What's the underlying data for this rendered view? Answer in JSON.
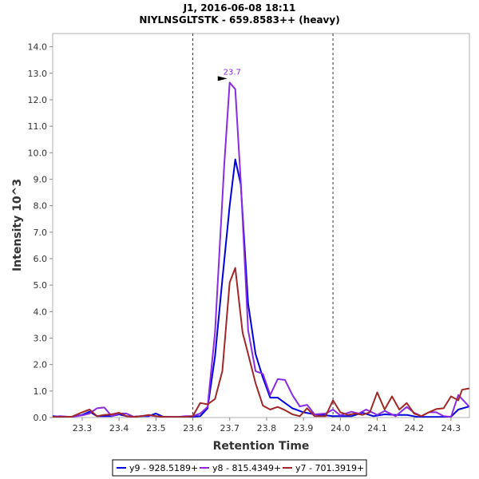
{
  "chart_data": {
    "type": "line",
    "title": "J1, 2016-06-08 18:11",
    "subtitle": "NIYLNSGLTSTK - 659.8583++ (heavy)",
    "xlabel": "Retention Time",
    "ylabel": "Intensity 10^3",
    "xlim": [
      23.22,
      24.35
    ],
    "ylim": [
      0,
      14.5
    ],
    "x_ticks": [
      "23.3",
      "23.4",
      "23.5",
      "23.6",
      "23.7",
      "23.8",
      "23.9",
      "24.0",
      "24.1",
      "24.2",
      "24.3"
    ],
    "y_ticks": [
      "0.0",
      "1.0",
      "2.0",
      "3.0",
      "4.0",
      "5.0",
      "6.0",
      "7.0",
      "8.0",
      "9.0",
      "10.0",
      "11.0",
      "12.0",
      "13.0",
      "14.0"
    ],
    "boundaries": [
      23.6,
      23.98
    ],
    "peak_annotation": {
      "label": "23.7",
      "x": 23.7,
      "y": 12.65
    },
    "series": [
      {
        "name": "y9 - 928.5189+",
        "color": "#0000dd",
        "points": [
          [
            23.22,
            0.05
          ],
          [
            23.24,
            0.03
          ],
          [
            23.27,
            0.02
          ],
          [
            23.3,
            0.1
          ],
          [
            23.32,
            0.22
          ],
          [
            23.34,
            0.05
          ],
          [
            23.36,
            0.05
          ],
          [
            23.38,
            0.05
          ],
          [
            23.4,
            0.12
          ],
          [
            23.42,
            0.05
          ],
          [
            23.44,
            0.03
          ],
          [
            23.46,
            0.05
          ],
          [
            23.48,
            0.05
          ],
          [
            23.5,
            0.15
          ],
          [
            23.52,
            0.03
          ],
          [
            23.54,
            0.02
          ],
          [
            23.56,
            0.02
          ],
          [
            23.58,
            0.02
          ],
          [
            23.6,
            0.03
          ],
          [
            23.62,
            0.05
          ],
          [
            23.64,
            0.35
          ],
          [
            23.66,
            2.3
          ],
          [
            23.68,
            5.2
          ],
          [
            23.7,
            8.0
          ],
          [
            23.715,
            9.75
          ],
          [
            23.73,
            8.8
          ],
          [
            23.75,
            4.3
          ],
          [
            23.77,
            2.4
          ],
          [
            23.79,
            1.5
          ],
          [
            23.81,
            0.75
          ],
          [
            23.83,
            0.75
          ],
          [
            23.85,
            0.55
          ],
          [
            23.87,
            0.35
          ],
          [
            23.9,
            0.2
          ],
          [
            23.93,
            0.12
          ],
          [
            23.96,
            0.08
          ],
          [
            23.98,
            0.05
          ],
          [
            24.0,
            0.05
          ],
          [
            24.03,
            0.05
          ],
          [
            24.06,
            0.18
          ],
          [
            24.09,
            0.05
          ],
          [
            24.12,
            0.12
          ],
          [
            24.15,
            0.1
          ],
          [
            24.18,
            0.1
          ],
          [
            24.21,
            0.02
          ],
          [
            24.24,
            0.02
          ],
          [
            24.27,
            0.02
          ],
          [
            24.3,
            0.03
          ],
          [
            24.32,
            0.3
          ],
          [
            24.35,
            0.42
          ]
        ]
      },
      {
        "name": "y8 - 815.4349+",
        "color": "#8a2be2",
        "points": [
          [
            23.22,
            0.02
          ],
          [
            23.24,
            0.05
          ],
          [
            23.27,
            0.02
          ],
          [
            23.3,
            0.08
          ],
          [
            23.32,
            0.15
          ],
          [
            23.34,
            0.35
          ],
          [
            23.36,
            0.38
          ],
          [
            23.38,
            0.05
          ],
          [
            23.4,
            0.15
          ],
          [
            23.42,
            0.15
          ],
          [
            23.44,
            0.03
          ],
          [
            23.46,
            0.05
          ],
          [
            23.48,
            0.08
          ],
          [
            23.5,
            0.05
          ],
          [
            23.52,
            0.03
          ],
          [
            23.54,
            0.02
          ],
          [
            23.56,
            0.02
          ],
          [
            23.58,
            0.05
          ],
          [
            23.6,
            0.05
          ],
          [
            23.62,
            0.15
          ],
          [
            23.64,
            0.4
          ],
          [
            23.66,
            3.2
          ],
          [
            23.685,
            9.5
          ],
          [
            23.7,
            12.65
          ],
          [
            23.715,
            12.4
          ],
          [
            23.73,
            8.9
          ],
          [
            23.75,
            3.3
          ],
          [
            23.77,
            1.75
          ],
          [
            23.79,
            1.65
          ],
          [
            23.81,
            0.85
          ],
          [
            23.83,
            1.45
          ],
          [
            23.85,
            1.42
          ],
          [
            23.87,
            0.85
          ],
          [
            23.89,
            0.42
          ],
          [
            23.91,
            0.48
          ],
          [
            23.93,
            0.12
          ],
          [
            23.96,
            0.15
          ],
          [
            23.98,
            0.3
          ],
          [
            24.0,
            0.08
          ],
          [
            24.03,
            0.22
          ],
          [
            24.05,
            0.15
          ],
          [
            24.07,
            0.3
          ],
          [
            24.1,
            0.1
          ],
          [
            24.12,
            0.25
          ],
          [
            24.15,
            0.05
          ],
          [
            24.18,
            0.4
          ],
          [
            24.2,
            0.18
          ],
          [
            24.22,
            0.05
          ],
          [
            24.24,
            0.2
          ],
          [
            24.26,
            0.2
          ],
          [
            24.28,
            0.05
          ],
          [
            24.3,
            0.02
          ],
          [
            24.32,
            0.85
          ],
          [
            24.35,
            0.4
          ]
        ]
      },
      {
        "name": "y7 - 701.3919+",
        "color": "#a02828",
        "points": [
          [
            23.22,
            0.02
          ],
          [
            23.24,
            0.02
          ],
          [
            23.27,
            0.02
          ],
          [
            23.3,
            0.2
          ],
          [
            23.32,
            0.3
          ],
          [
            23.34,
            0.05
          ],
          [
            23.36,
            0.1
          ],
          [
            23.38,
            0.12
          ],
          [
            23.4,
            0.18
          ],
          [
            23.42,
            0.05
          ],
          [
            23.44,
            0.02
          ],
          [
            23.46,
            0.05
          ],
          [
            23.48,
            0.1
          ],
          [
            23.5,
            0.05
          ],
          [
            23.52,
            0.02
          ],
          [
            23.54,
            0.02
          ],
          [
            23.56,
            0.02
          ],
          [
            23.58,
            0.02
          ],
          [
            23.6,
            0.05
          ],
          [
            23.62,
            0.55
          ],
          [
            23.64,
            0.5
          ],
          [
            23.66,
            0.7
          ],
          [
            23.68,
            1.75
          ],
          [
            23.7,
            5.1
          ],
          [
            23.715,
            5.65
          ],
          [
            23.735,
            3.2
          ],
          [
            23.75,
            2.4
          ],
          [
            23.77,
            1.3
          ],
          [
            23.79,
            0.45
          ],
          [
            23.81,
            0.3
          ],
          [
            23.83,
            0.4
          ],
          [
            23.85,
            0.28
          ],
          [
            23.87,
            0.12
          ],
          [
            23.89,
            0.05
          ],
          [
            23.91,
            0.35
          ],
          [
            23.93,
            0.05
          ],
          [
            23.96,
            0.05
          ],
          [
            23.98,
            0.65
          ],
          [
            24.0,
            0.2
          ],
          [
            24.02,
            0.1
          ],
          [
            24.04,
            0.15
          ],
          [
            24.06,
            0.1
          ],
          [
            24.08,
            0.2
          ],
          [
            24.1,
            0.95
          ],
          [
            24.12,
            0.3
          ],
          [
            24.14,
            0.8
          ],
          [
            24.16,
            0.3
          ],
          [
            24.18,
            0.55
          ],
          [
            24.2,
            0.15
          ],
          [
            24.22,
            0.05
          ],
          [
            24.24,
            0.2
          ],
          [
            24.26,
            0.32
          ],
          [
            24.28,
            0.35
          ],
          [
            24.3,
            0.8
          ],
          [
            24.32,
            0.65
          ],
          [
            24.33,
            1.05
          ],
          [
            24.35,
            1.1
          ]
        ]
      }
    ]
  }
}
